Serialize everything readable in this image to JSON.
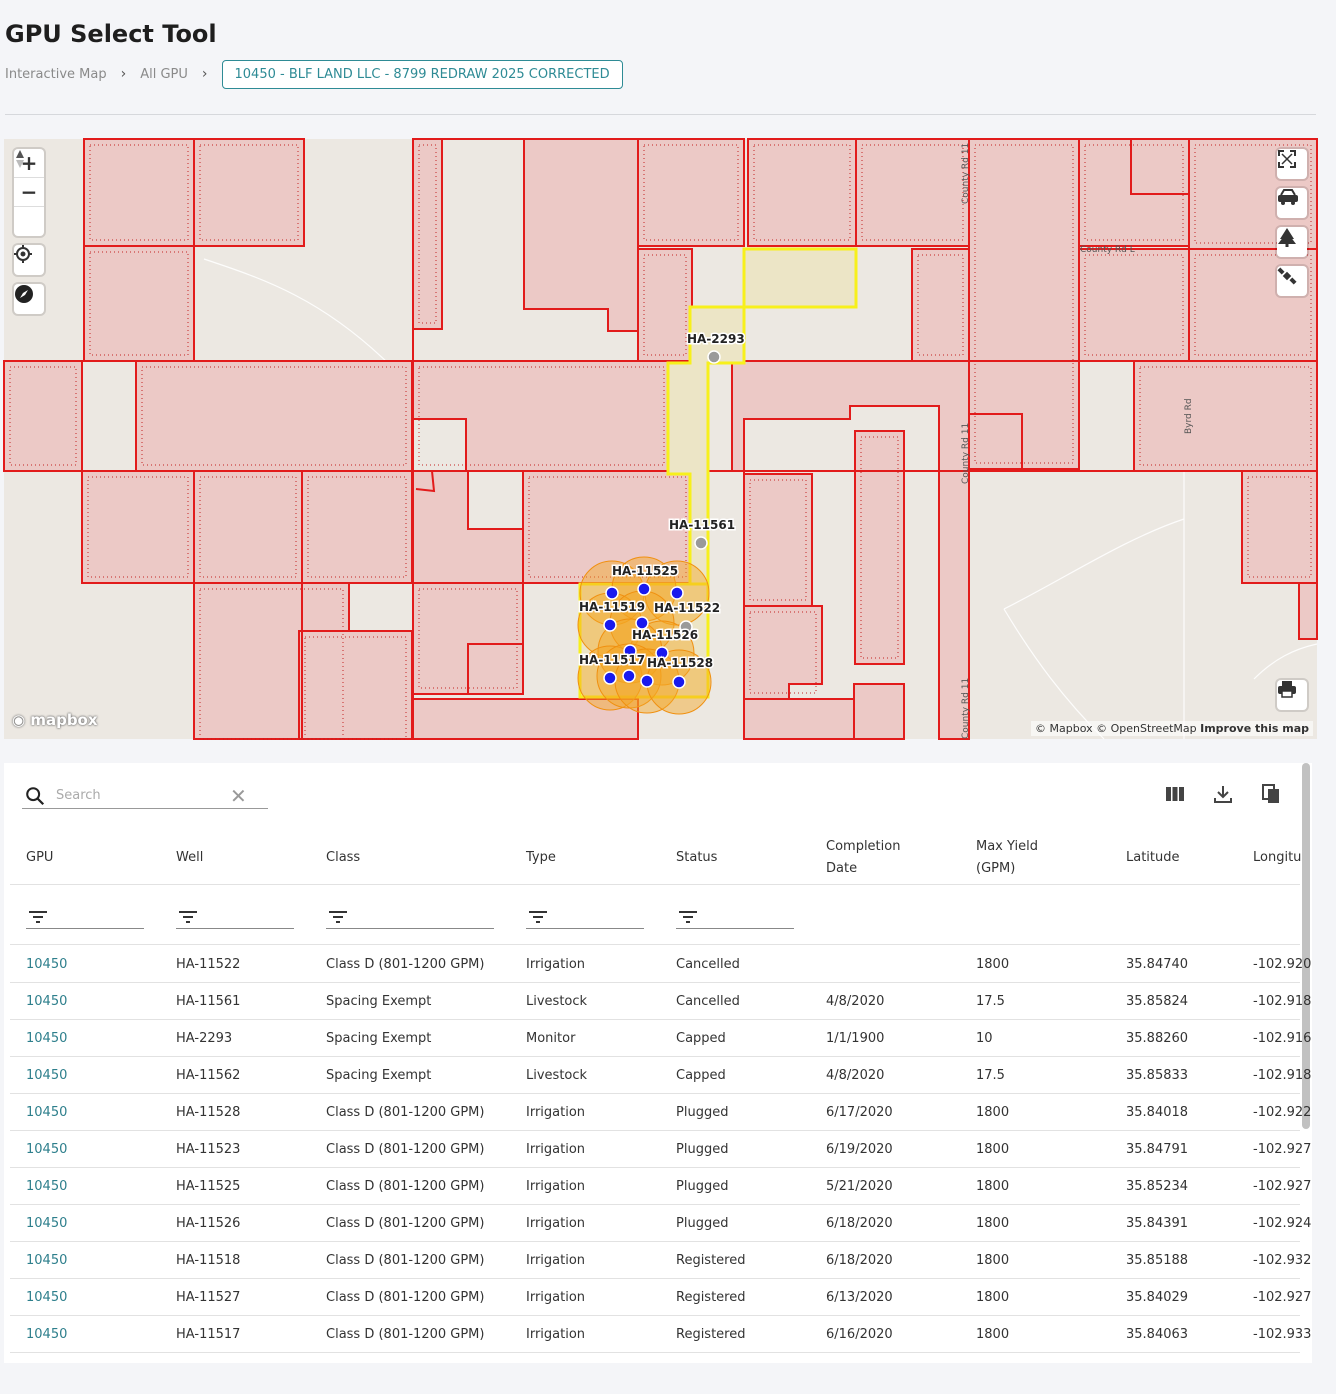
{
  "page": {
    "title": "GPU Select Tool"
  },
  "breadcrumb": {
    "items": [
      "Interactive Map",
      "All GPU"
    ],
    "current": "10450 - BLF LAND LLC - 8799 REDRAW 2025 CORRECTED"
  },
  "map": {
    "attribution": "© Mapbox © OpenStreetMap",
    "improve_link": "Improve this map",
    "logo": "mapbox",
    "roads": [
      "County Rd 11",
      "County Rd L",
      "Byrd Rd",
      "County Rd 11",
      "County Rd 11"
    ],
    "well_labels": [
      "HA-2293",
      "HA-11561",
      "HA-11525",
      "HA-11519",
      "HA-11522",
      "HA-11526",
      "HA-11517",
      "HA-11528"
    ],
    "colors": {
      "parcel_fill": "#ecc9c6",
      "parcel_line": "#e21b1b",
      "selected_line": "#f7f01b",
      "well_dot": "#1a1aee",
      "well_buffer": "#f5a623"
    }
  },
  "search": {
    "placeholder": "Search"
  },
  "table": {
    "columns": [
      "GPU",
      "Well",
      "Class",
      "Type",
      "Status",
      "Completion Date",
      "Max Yield (GPM)",
      "Latitude",
      "Longitu"
    ],
    "rows": [
      {
        "gpu": "10450",
        "well": "HA-11522",
        "cls": "Class D (801-1200 GPM)",
        "type": "Irrigation",
        "status": "Cancelled",
        "date": "",
        "yield": "1800",
        "lat": "35.84740",
        "lon": "-102.920"
      },
      {
        "gpu": "10450",
        "well": "HA-11561",
        "cls": "Spacing Exempt",
        "type": "Livestock",
        "status": "Cancelled",
        "date": "4/8/2020",
        "yield": "17.5",
        "lat": "35.85824",
        "lon": "-102.918"
      },
      {
        "gpu": "10450",
        "well": "HA-2293",
        "cls": "Spacing Exempt",
        "type": "Monitor",
        "status": "Capped",
        "date": "1/1/1900",
        "yield": "10",
        "lat": "35.88260",
        "lon": "-102.916"
      },
      {
        "gpu": "10450",
        "well": "HA-11562",
        "cls": "Spacing Exempt",
        "type": "Livestock",
        "status": "Capped",
        "date": "4/8/2020",
        "yield": "17.5",
        "lat": "35.85833",
        "lon": "-102.918"
      },
      {
        "gpu": "10450",
        "well": "HA-11528",
        "cls": "Class D (801-1200 GPM)",
        "type": "Irrigation",
        "status": "Plugged",
        "date": "6/17/2020",
        "yield": "1800",
        "lat": "35.84018",
        "lon": "-102.922"
      },
      {
        "gpu": "10450",
        "well": "HA-11523",
        "cls": "Class D (801-1200 GPM)",
        "type": "Irrigation",
        "status": "Plugged",
        "date": "6/19/2020",
        "yield": "1800",
        "lat": "35.84791",
        "lon": "-102.927"
      },
      {
        "gpu": "10450",
        "well": "HA-11525",
        "cls": "Class D (801-1200 GPM)",
        "type": "Irrigation",
        "status": "Plugged",
        "date": "5/21/2020",
        "yield": "1800",
        "lat": "35.85234",
        "lon": "-102.927"
      },
      {
        "gpu": "10450",
        "well": "HA-11526",
        "cls": "Class D (801-1200 GPM)",
        "type": "Irrigation",
        "status": "Plugged",
        "date": "6/18/2020",
        "yield": "1800",
        "lat": "35.84391",
        "lon": "-102.924"
      },
      {
        "gpu": "10450",
        "well": "HA-11518",
        "cls": "Class D (801-1200 GPM)",
        "type": "Irrigation",
        "status": "Registered",
        "date": "6/18/2020",
        "yield": "1800",
        "lat": "35.85188",
        "lon": "-102.932"
      },
      {
        "gpu": "10450",
        "well": "HA-11527",
        "cls": "Class D (801-1200 GPM)",
        "type": "Irrigation",
        "status": "Registered",
        "date": "6/13/2020",
        "yield": "1800",
        "lat": "35.84029",
        "lon": "-102.927"
      },
      {
        "gpu": "10450",
        "well": "HA-11517",
        "cls": "Class D (801-1200 GPM)",
        "type": "Irrigation",
        "status": "Registered",
        "date": "6/16/2020",
        "yield": "1800",
        "lat": "35.84063",
        "lon": "-102.933"
      }
    ]
  }
}
